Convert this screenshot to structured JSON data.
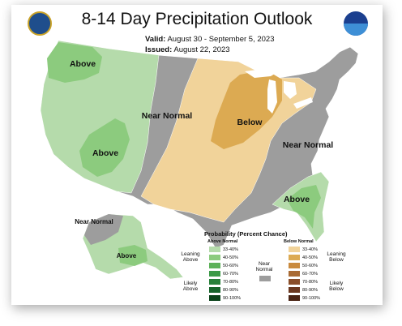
{
  "header": {
    "title": "8-14 Day Precipitation Outlook",
    "valid_label": "Valid:",
    "valid_value": "August 30 - September 5, 2023",
    "issued_label": "Issued:",
    "issued_value": "August 22, 2023"
  },
  "logos": [
    "doc-seal-icon",
    "noaa-logo-icon"
  ],
  "colors": {
    "above_33_40": "#b5dbab",
    "above_40_50": "#8ccb7e",
    "above_50_60": "#5db159",
    "near_normal": "#9d9d9d",
    "below_33_40": "#f1d39a",
    "below_40_50": "#dcaa52",
    "water": "#ffffff"
  },
  "map": {
    "regions": [
      {
        "label": "Above",
        "category": "above"
      },
      {
        "label": "Above",
        "category": "above"
      },
      {
        "label": "Near Normal",
        "category": "near_normal"
      },
      {
        "label": "Below",
        "category": "below"
      },
      {
        "label": "Near Normal",
        "category": "near_normal"
      },
      {
        "label": "Above",
        "category": "above"
      },
      {
        "label": "Near Normal",
        "category": "near_normal"
      },
      {
        "label": "Above",
        "category": "above"
      }
    ]
  },
  "legend": {
    "title": "Probability (Percent Chance)",
    "above_heading": "Above Normal",
    "below_heading": "Below Normal",
    "near_label": "Near Normal",
    "leaning_above": "Leaning Above",
    "likely_above": "Likely Above",
    "leaning_below": "Leaning Below",
    "likely_below": "Likely Below",
    "above_ranges": [
      "33-40%",
      "40-50%",
      "50-60%",
      "60-70%",
      "70-80%",
      "80-90%",
      "90-100%"
    ],
    "below_ranges": [
      "33-40%",
      "40-50%",
      "50-60%",
      "60-70%",
      "70-80%",
      "80-90%",
      "90-100%"
    ],
    "above_colors": [
      "#b5dbab",
      "#8ccb7e",
      "#5db159",
      "#3c9a47",
      "#28803a",
      "#17642b",
      "#0b431a"
    ],
    "below_colors": [
      "#f1d39a",
      "#dcaa52",
      "#c98a3e",
      "#a96a33",
      "#8a4e2a",
      "#6b3820",
      "#4a2414"
    ]
  }
}
